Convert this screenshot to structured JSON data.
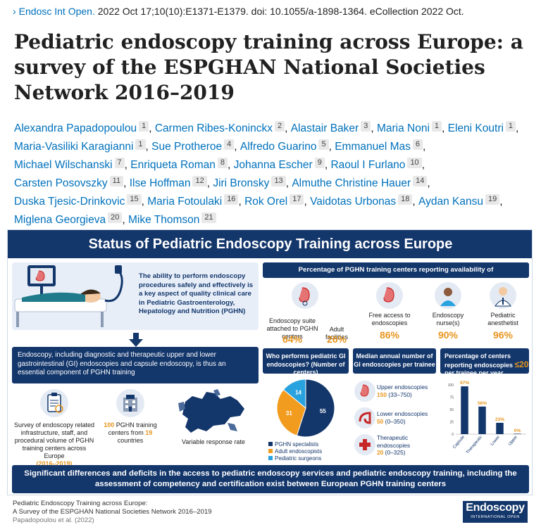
{
  "citation": {
    "journal": "Endosc Int Open.",
    "details": " 2022 Oct 17;10(10):E1371-E1379. doi: 10.1055/a-1898-1364. eCollection 2022 Oct."
  },
  "title": "Pediatric endoscopy training across Europe: a survey of the ESPGHAN National Societies Network 2016–2019",
  "authors": [
    {
      "name": "Alexandra Papadopoulou",
      "aff": "1"
    },
    {
      "name": "Carmen Ribes-Koninckx",
      "aff": "2"
    },
    {
      "name": "Alastair Baker",
      "aff": "3"
    },
    {
      "name": "Maria Noni",
      "aff": "1"
    },
    {
      "name": "Eleni Koutri",
      "aff": "1"
    },
    {
      "name": "Maria-Vasiliki Karagianni",
      "aff": "1"
    },
    {
      "name": "Sue Protheroe",
      "aff": "4"
    },
    {
      "name": "Alfredo Guarino",
      "aff": "5"
    },
    {
      "name": "Emmanuel Mas",
      "aff": "6"
    },
    {
      "name": "Michael Wilschanski",
      "aff": "7"
    },
    {
      "name": "Enriqueta Roman",
      "aff": "8"
    },
    {
      "name": "Johanna Escher",
      "aff": "9"
    },
    {
      "name": "Raoul I Furlano",
      "aff": "10"
    },
    {
      "name": "Carsten Posovszky",
      "aff": "11"
    },
    {
      "name": "Ilse Hoffman",
      "aff": "12"
    },
    {
      "name": "Jiri Bronsky",
      "aff": "13"
    },
    {
      "name": "Almuthe Christine Hauer",
      "aff": "14"
    },
    {
      "name": "Duska Tjesic-Drinkovic",
      "aff": "15"
    },
    {
      "name": "Maria Fotoulaki",
      "aff": "16"
    },
    {
      "name": "Rok Orel",
      "aff": "17"
    },
    {
      "name": "Vaidotas Urbonas",
      "aff": "18"
    },
    {
      "name": "Aydan Kansu",
      "aff": "19"
    },
    {
      "name": "Miglena Georgieva",
      "aff": "20"
    },
    {
      "name": "Mike Thomson",
      "aff": "21"
    }
  ],
  "infographic": {
    "banner": "Status of Pediatric Endoscopy Training across Europe",
    "intro": "The ability to perform endoscopy procedures safely and effectively is a key aspect of quality clinical care in Pediatric Gastroenterology, Hepatology and Nutrition (PGHN)",
    "endoscopy_box": "Endoscopy, including diagnostic and therapeutic upper and lower gastrointestinal (GI) endoscopies and capsule endoscopy, is thus an essential component of PGHN training",
    "survey_text": "Survey of endoscopy related infrastructure, staff, and procedural volume of PGHN training centers across Europe",
    "survey_years": "(2016–2019)",
    "centers_count": "100",
    "centers_mid": " PGHN training centers from ",
    "countries_count": "19",
    "countries_label": " countries",
    "response_rate": "Variable response rate",
    "pct_header": "Percentage of PGHN training centers reporting availability of",
    "availability": [
      {
        "label": "Endoscopy suite attached to PGHN centers",
        "pct": "64%"
      },
      {
        "label": "Adult facilities",
        "pct": "26%"
      },
      {
        "label": "Free access to endoscopies",
        "pct": "86%"
      },
      {
        "label": "Endoscopy nurse(s)",
        "pct": "90%"
      },
      {
        "label": "Pediatric anesthetist",
        "pct": "96%"
      }
    ],
    "who_header": "Who performs pediatric GI endoscopies? (Number of centers)",
    "median_header": "Median annual number of GI endoscopies per trainee",
    "pct20_header": "Percentage of centers reporting endoscopies",
    "pct20_value": "≤20",
    "pct20_tail": " per trainee per year",
    "median_items": [
      {
        "label": "Upper endoscopies",
        "value": "150",
        "range": " (33–750)"
      },
      {
        "label": "Lower endoscopies",
        "value": "50",
        "range": " (0–350)"
      },
      {
        "label": "Therapeutic endoscopies",
        "value": "20",
        "range": " (0–325)"
      }
    ],
    "bottom_banner": "Significant differences and deficits in the access to pediatric endoscopy services and pediatric endoscopy training, including the assessment of competency and certification exist between European PGHN training centers",
    "colors": {
      "navy": "#13366b",
      "orange": "#e8951d",
      "lightblue": "#29a3e0",
      "panel": "#e7eef8"
    }
  },
  "chart_data": [
    {
      "type": "pie",
      "title": "",
      "categories": [
        "PGHN specialists",
        "Adult endoscopists",
        "Pediatric surgeons"
      ],
      "values": [
        55,
        31,
        14
      ],
      "colors": [
        "#13366b",
        "#f29c1f",
        "#29a3e0"
      ],
      "legend": "bottom"
    },
    {
      "type": "bar",
      "title": "",
      "categories": [
        "Capsule",
        "Therapeutic",
        "Lower",
        "Upper"
      ],
      "values": [
        97,
        56,
        23,
        0
      ],
      "data_labels": [
        "97%",
        "56%",
        "23%",
        "0%"
      ],
      "ylim": [
        0,
        100
      ],
      "yticks": [
        "0",
        "25",
        "50",
        "75",
        "100"
      ],
      "color": "#13366b"
    }
  ],
  "footer": {
    "line1": "Pediatric Endoscopy Training across Europe:",
    "line2": "A Survey of the ESPGHAN National Societies Network 2016–2019",
    "line3": "Papadopoulou et al. (2022)"
  },
  "logo": {
    "title": "Endoscopy",
    "subtitle": "INTERNATIONAL OPEN"
  }
}
